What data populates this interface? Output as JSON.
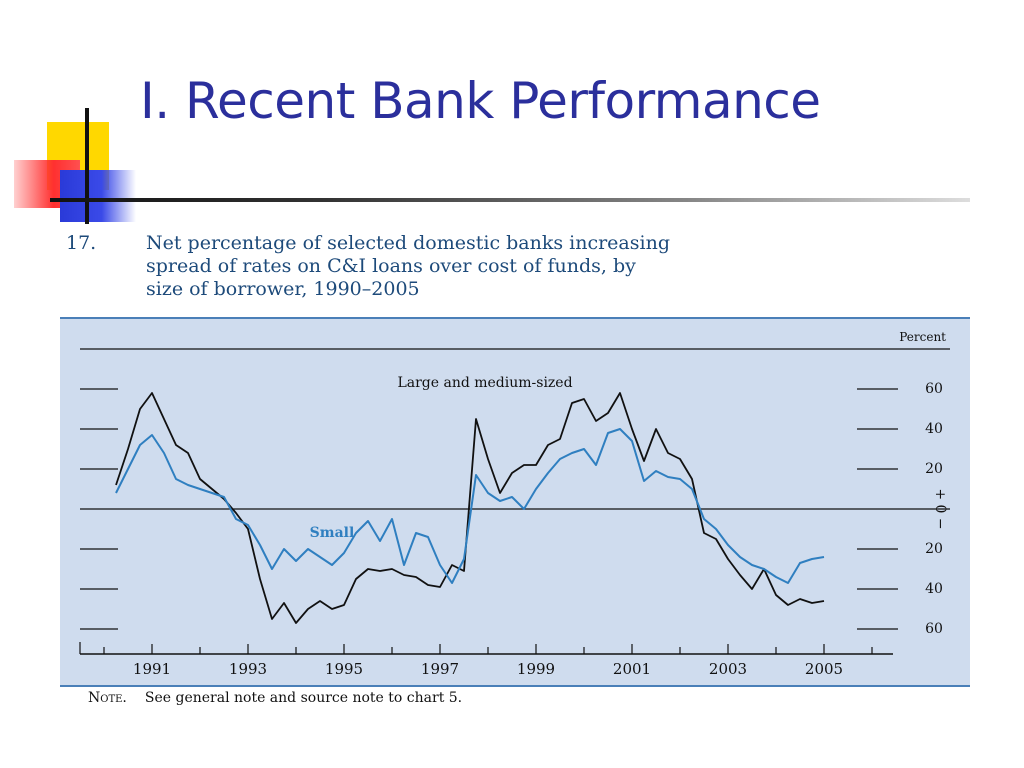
{
  "slide": {
    "title": "I. Recent Bank Performance"
  },
  "figure": {
    "number": "17.",
    "title_lines": [
      "Net percentage of selected domestic banks increasing",
      "spread of rates on C&I loans over cost of funds, by",
      "size of borrower, 1990–2005"
    ],
    "note_label": "Note.",
    "note_text": "See general note and source note to chart 5."
  },
  "colors": {
    "title": "#2b2f9c",
    "figure_text": "#1d4a7a",
    "chart_background": "#cfdcee",
    "large_series": "#111111",
    "small_series": "#2f7fc0"
  },
  "chart_data": {
    "type": "line",
    "unit_label": "Percent",
    "y_ticks": [
      60,
      40,
      20,
      0,
      -20,
      -40,
      -60
    ],
    "y_tick_labels": [
      "60",
      "40",
      "20",
      "0",
      "20",
      "40",
      "60"
    ],
    "zero_sign_labels": [
      "+",
      "−"
    ],
    "ylim": [
      -70,
      80
    ],
    "x_ticks": [
      1991,
      1993,
      1995,
      1997,
      1999,
      2001,
      2003,
      2005
    ],
    "x_tick_labels": [
      "1991",
      "1993",
      "1995",
      "1997",
      "1999",
      "2001",
      "2003",
      "2005"
    ],
    "xlim": [
      1989.5,
      2006.5
    ],
    "grid": false,
    "series": [
      {
        "name": "Large and medium-sized",
        "color": "#111111",
        "x": [
          1990.25,
          1990.5,
          1990.75,
          1991.0,
          1991.25,
          1991.5,
          1991.75,
          1992.0,
          1992.25,
          1992.5,
          1992.75,
          1993.0,
          1993.25,
          1993.5,
          1993.75,
          1994.0,
          1994.25,
          1994.5,
          1994.75,
          1995.0,
          1995.25,
          1995.5,
          1995.75,
          1996.0,
          1996.25,
          1996.5,
          1996.75,
          1997.0,
          1997.25,
          1997.5,
          1997.75,
          1998.0,
          1998.25,
          1998.5,
          1998.75,
          1999.0,
          1999.25,
          1999.5,
          1999.75,
          2000.0,
          2000.25,
          2000.5,
          2000.75,
          2001.0,
          2001.25,
          2001.5,
          2001.75,
          2002.0,
          2002.25,
          2002.5,
          2002.75,
          2003.0,
          2003.25,
          2003.5,
          2003.75,
          2004.0,
          2004.25,
          2004.5,
          2004.75,
          2005.0
        ],
        "values": [
          12,
          30,
          50,
          58,
          45,
          32,
          28,
          15,
          10,
          5,
          -2,
          -10,
          -35,
          -55,
          -47,
          -57,
          -50,
          -46,
          -50,
          -48,
          -35,
          -30,
          -31,
          -30,
          -33,
          -34,
          -38,
          -39,
          -28,
          -31,
          45,
          25,
          8,
          18,
          22,
          22,
          32,
          35,
          53,
          55,
          44,
          48,
          58,
          40,
          24,
          40,
          28,
          25,
          15,
          -12,
          -15,
          -25,
          -33,
          -40,
          -30,
          -43,
          -48,
          -45,
          -47,
          -46
        ]
      },
      {
        "name": "Small",
        "color": "#2f7fc0",
        "x": [
          1990.25,
          1990.5,
          1990.75,
          1991.0,
          1991.25,
          1991.5,
          1991.75,
          1992.0,
          1992.25,
          1992.5,
          1992.75,
          1993.0,
          1993.25,
          1993.5,
          1993.75,
          1994.0,
          1994.25,
          1994.5,
          1994.75,
          1995.0,
          1995.25,
          1995.5,
          1995.75,
          1996.0,
          1996.25,
          1996.5,
          1996.75,
          1997.0,
          1997.25,
          1997.5,
          1997.75,
          1998.0,
          1998.25,
          1998.5,
          1998.75,
          1999.0,
          1999.25,
          1999.5,
          1999.75,
          2000.0,
          2000.25,
          2000.5,
          2000.75,
          2001.0,
          2001.25,
          2001.5,
          2001.75,
          2002.0,
          2002.25,
          2002.5,
          2002.75,
          2003.0,
          2003.25,
          2003.5,
          2003.75,
          2004.0,
          2004.25,
          2004.5,
          2004.75,
          2005.0
        ],
        "values": [
          8,
          20,
          32,
          37,
          28,
          15,
          12,
          10,
          8,
          6,
          -5,
          -8,
          -18,
          -30,
          -20,
          -26,
          -20,
          -24,
          -28,
          -22,
          -12,
          -6,
          -16,
          -5,
          -28,
          -12,
          -14,
          -28,
          -37,
          -25,
          17,
          8,
          4,
          6,
          0,
          10,
          18,
          25,
          28,
          30,
          22,
          38,
          40,
          34,
          14,
          19,
          16,
          15,
          10,
          -5,
          -10,
          -18,
          -24,
          -28,
          -30,
          -34,
          -37,
          -27,
          -25,
          -24
        ]
      }
    ]
  }
}
